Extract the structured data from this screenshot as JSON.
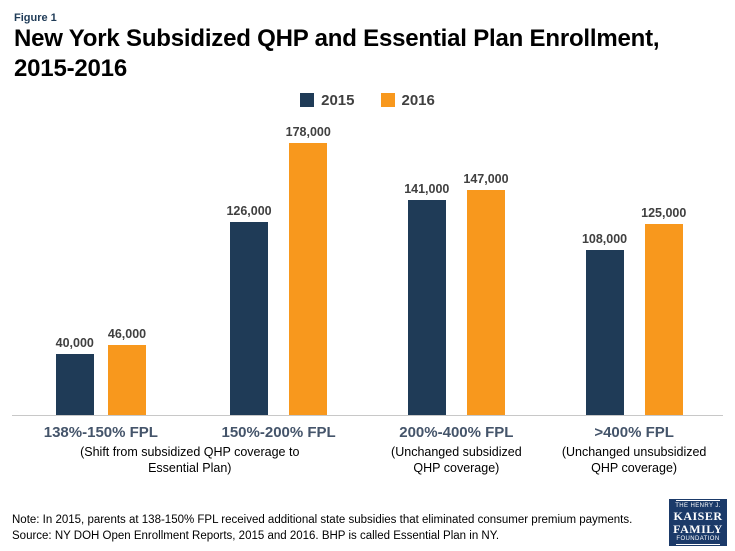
{
  "figure_label": "Figure 1",
  "title": {
    "full": "New York Subsidized QHP and Essential Plan Enrollment, 2015-2016",
    "line1": "New York Subsidized QHP and Essential Plan Enrollment,",
    "line2": "2015-2016"
  },
  "legend": {
    "items": [
      {
        "label": "2015",
        "color": "#1f3b57"
      },
      {
        "label": "2016",
        "color": "#f8981d"
      }
    ]
  },
  "chart_data": {
    "type": "bar",
    "title": "New York Subsidized QHP and Essential Plan Enrollment, 2015-2016",
    "categories": [
      "138%-150% FPL",
      "150%-200% FPL",
      "200%-400% FPL",
      ">400% FPL"
    ],
    "series": [
      {
        "name": "2015",
        "color": "#1f3b57",
        "values": [
          40000,
          126000,
          141000,
          108000
        ],
        "labels": [
          "40,000",
          "126,000",
          "141,000",
          "108,000"
        ]
      },
      {
        "name": "2016",
        "color": "#f8981d",
        "values": [
          46000,
          178000,
          147000,
          125000
        ],
        "labels": [
          "46,000",
          "178,000",
          "147,000",
          "125,000"
        ]
      }
    ],
    "ylim": [
      0,
      195000
    ],
    "grid": false,
    "legend_position": "top",
    "annotations": [
      {
        "text": "(Shift from subsidized QHP coverage to Essential Plan)",
        "span": 2
      },
      {
        "text": "(Unchanged subsidized QHP coverage)",
        "span": 1
      },
      {
        "text": "(Unchanged unsubsidized QHP coverage)",
        "span": 1
      }
    ]
  },
  "note": "Note: In 2015, parents at 138-150% FPL received additional state subsidies that eliminated consumer premium payments.",
  "source": "Source: NY DOH Open Enrollment Reports, 2015 and 2016. BHP is called Essential Plan in NY.",
  "logo": {
    "line1": "THE HENRY J.",
    "line2": "KAISER",
    "line3": "FAMILY",
    "line4": "FOUNDATION"
  }
}
